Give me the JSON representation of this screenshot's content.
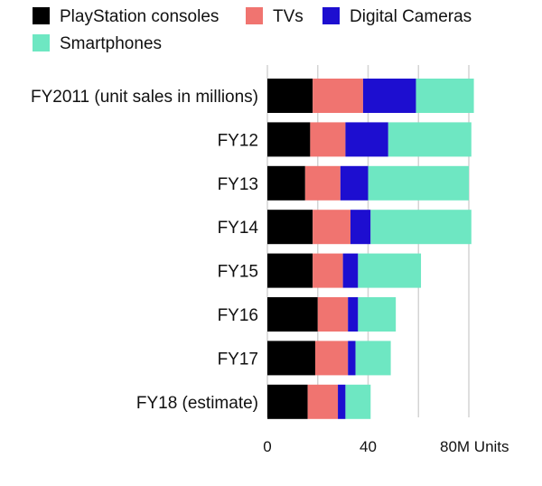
{
  "chart_data": {
    "type": "bar",
    "orientation": "horizontal",
    "stacked": true,
    "categories": [
      "FY2011 (unit sales in millions)",
      "FY12",
      "FY13",
      "FY14",
      "FY15",
      "FY16",
      "FY17",
      "FY18 (estimate)"
    ],
    "series": [
      {
        "name": "PlayStation consoles",
        "color": "#000000",
        "values": [
          18,
          17,
          15,
          18,
          18,
          20,
          19,
          16
        ]
      },
      {
        "name": "TVs",
        "color": "#f07470",
        "values": [
          20,
          14,
          14,
          15,
          12,
          12,
          13,
          12
        ]
      },
      {
        "name": "Digital Cameras",
        "color": "#1d0ed0",
        "values": [
          21,
          17,
          11,
          8,
          6,
          4,
          3,
          3
        ]
      },
      {
        "name": "Smartphones",
        "color": "#6ee7c2",
        "values": [
          23,
          33,
          40,
          40,
          25,
          15,
          14,
          10
        ]
      }
    ],
    "xlim": [
      0,
      80
    ],
    "xticks": [
      0,
      20,
      40,
      60,
      80
    ],
    "xtick_labels": [
      "0",
      "",
      "40",
      "",
      "80M Units"
    ],
    "grid": true,
    "legend_position": "top-left"
  }
}
